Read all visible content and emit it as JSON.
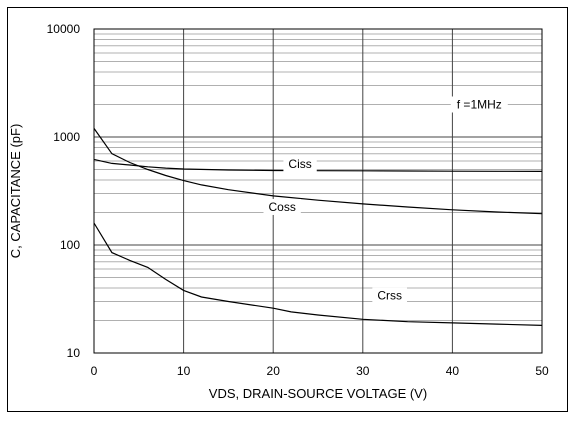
{
  "chart_data": {
    "type": "line",
    "xlabel": "VDS, DRAIN-SOURCE VOLTAGE (V)",
    "ylabel": "C, CAPACITANCE (pF)",
    "annotation": "f =1MHz",
    "x_scale": "linear",
    "y_scale": "log",
    "xlim": [
      0,
      50
    ],
    "ylim": [
      10,
      10000
    ],
    "x_ticks": [
      0,
      10,
      20,
      30,
      40,
      50
    ],
    "y_ticks": [
      10,
      100,
      1000,
      10000
    ],
    "x_tick_labels": [
      "0",
      "10",
      "20",
      "30",
      "40",
      "50"
    ],
    "y_tick_labels": [
      "10",
      "100",
      "1000",
      "10000"
    ],
    "grid": true,
    "series": [
      {
        "name": "Ciss",
        "x": [
          0,
          2,
          4,
          6,
          8,
          10,
          15,
          20,
          25,
          30,
          35,
          40,
          45,
          50
        ],
        "y": [
          620,
          570,
          550,
          530,
          515,
          505,
          495,
          490,
          488,
          486,
          484,
          482,
          481,
          480
        ]
      },
      {
        "name": "Coss",
        "x": [
          0,
          2,
          4,
          6,
          8,
          10,
          12,
          15,
          20,
          25,
          30,
          35,
          40,
          45,
          50
        ],
        "y": [
          1200,
          700,
          580,
          500,
          440,
          395,
          360,
          325,
          285,
          260,
          240,
          225,
          212,
          202,
          195
        ]
      },
      {
        "name": "Crss",
        "x": [
          0,
          2,
          4,
          6,
          8,
          10,
          12,
          15,
          20,
          22,
          25,
          30,
          35,
          40,
          45,
          50
        ],
        "y": [
          160,
          85,
          72,
          62,
          48,
          38,
          33,
          30,
          26,
          24,
          22.5,
          20.5,
          19.5,
          19,
          18.5,
          18
        ]
      }
    ],
    "series_label_positions": [
      {
        "name": "Ciss",
        "x": 23,
        "y": 560
      },
      {
        "name": "Coss",
        "x": 21,
        "y": 225
      },
      {
        "name": "Crss",
        "x": 33,
        "y": 34
      }
    ],
    "annotation_position": {
      "x": 43,
      "y": 2000
    }
  }
}
